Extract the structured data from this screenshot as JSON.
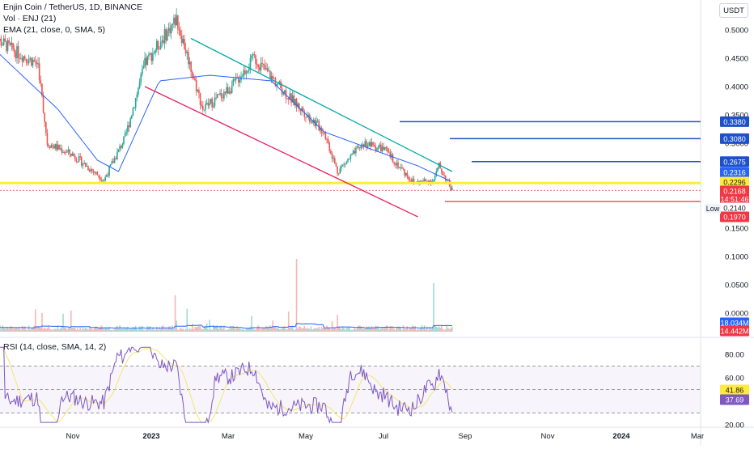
{
  "header": {
    "symbol": "Enjin Coin / TetherUS, 1D, BINANCE",
    "vol_label": "Vol · ENJ (21)",
    "ema_label": "EMA (21, close, 0, SMA, 5)",
    "currency_button": "USDT",
    "rsi_label": "RSI (14, close, SMA, 14, 2)"
  },
  "colors": {
    "up": "#26a69a",
    "down": "#ef5350",
    "ema": "#2962ff",
    "yellow_line": "#ffeb3b",
    "teal_trend": "#00a8a8",
    "red_trend": "#e91e63",
    "blue_level": "#1e50c8",
    "red_level": "#f23645",
    "rsi": "#7e57c2",
    "rsi_ma": "#f5e56b"
  },
  "chart_data": {
    "type": "candlestick",
    "price_axis": {
      "ticks": [
        "0.5000",
        "0.4500",
        "0.4000",
        "0.3500",
        "0.3000",
        "0.2500",
        "0.2000",
        "0.1500",
        "0.1000",
        "0.0500",
        "0.0000"
      ],
      "ylim": [
        0.0,
        0.53
      ]
    },
    "x_axis_labels": [
      "Nov",
      "2023",
      "Mar",
      "May",
      "Jul",
      "Sep",
      "Nov",
      "2024",
      "Mar"
    ],
    "price_series": {
      "name": "ENJUSDT",
      "approx_trend": [
        {
          "date": "2022-10-01",
          "close": 0.49
        },
        {
          "date": "2022-10-20",
          "close": 0.46
        },
        {
          "date": "2022-11-05",
          "close": 0.44
        },
        {
          "date": "2022-11-12",
          "close": 0.3
        },
        {
          "date": "2022-12-01",
          "close": 0.28
        },
        {
          "date": "2022-12-25",
          "close": 0.235
        },
        {
          "date": "2023-01-10",
          "close": 0.31
        },
        {
          "date": "2023-01-25",
          "close": 0.44
        },
        {
          "date": "2023-02-18",
          "close": 0.52
        },
        {
          "date": "2023-03-10",
          "close": 0.36
        },
        {
          "date": "2023-04-01",
          "close": 0.4
        },
        {
          "date": "2023-04-18",
          "close": 0.45
        },
        {
          "date": "2023-05-15",
          "close": 0.38
        },
        {
          "date": "2023-06-10",
          "close": 0.32
        },
        {
          "date": "2023-06-20",
          "close": 0.25
        },
        {
          "date": "2023-07-10",
          "close": 0.3
        },
        {
          "date": "2023-07-25",
          "close": 0.29
        },
        {
          "date": "2023-08-17",
          "close": 0.23
        },
        {
          "date": "2023-09-01",
          "close": 0.235
        },
        {
          "date": "2023-09-05",
          "close": 0.26
        },
        {
          "date": "2023-09-15",
          "close": 0.2168
        }
      ]
    },
    "ema_series": {
      "name": "EMA (21)",
      "approx_trend": [
        {
          "date": "2022-10-01",
          "value": 0.47
        },
        {
          "date": "2022-11-20",
          "value": 0.36
        },
        {
          "date": "2022-12-20",
          "value": 0.27
        },
        {
          "date": "2023-01-05",
          "value": 0.25
        },
        {
          "date": "2023-02-05",
          "value": 0.41
        },
        {
          "date": "2023-03-15",
          "value": 0.42
        },
        {
          "date": "2023-05-01",
          "value": 0.41
        },
        {
          "date": "2023-06-10",
          "value": 0.32
        },
        {
          "date": "2023-07-15",
          "value": 0.29
        },
        {
          "date": "2023-08-20",
          "value": 0.26
        },
        {
          "date": "2023-09-15",
          "value": 0.2316
        }
      ]
    },
    "horizontal_levels": [
      {
        "value": 0.338,
        "label": "0.3380",
        "color": "blue"
      },
      {
        "value": 0.308,
        "label": "0.3080",
        "color": "blue"
      },
      {
        "value": 0.2675,
        "label": "0.2675",
        "color": "blue"
      },
      {
        "value": 0.2296,
        "label": "0.2296",
        "color": "yellow"
      },
      {
        "value": 0.197,
        "label": "0.1970",
        "color": "red"
      }
    ],
    "trend_lines": [
      {
        "name": "upper-channel",
        "from": {
          "date": "2023-03-01",
          "price": 0.485
        },
        "to": {
          "date": "2023-09-15",
          "price": 0.25
        }
      },
      {
        "name": "lower-channel",
        "from": {
          "date": "2023-01-25",
          "price": 0.4
        },
        "to": {
          "date": "2023-08-20",
          "price": 0.17
        }
      }
    ],
    "price_labels": [
      {
        "text": "0.2316",
        "kind": "ema"
      },
      {
        "text": "0.2296",
        "kind": "level"
      },
      {
        "text": "0.2168",
        "kind": "last"
      },
      {
        "text": "14:51:46",
        "kind": "countdown"
      },
      {
        "text": "0.2140",
        "kind": "low-value"
      },
      {
        "text": "Low",
        "kind": "low-tag"
      },
      {
        "text": "0.1970",
        "kind": "level"
      }
    ],
    "volume_axis": {
      "ticks": [
        "0.1000",
        "0.0500",
        "0.0000"
      ]
    },
    "volume_labels": [
      "18.034M",
      "14.442M"
    ],
    "rsi_axis": {
      "ticks": [
        "80.00",
        "60.00",
        "20.00"
      ]
    },
    "rsi_values": {
      "rsi": "41.86",
      "rsi_ma": "37.69"
    },
    "rsi_bands": {
      "upper": 70,
      "middle": 50,
      "lower": 30
    }
  }
}
